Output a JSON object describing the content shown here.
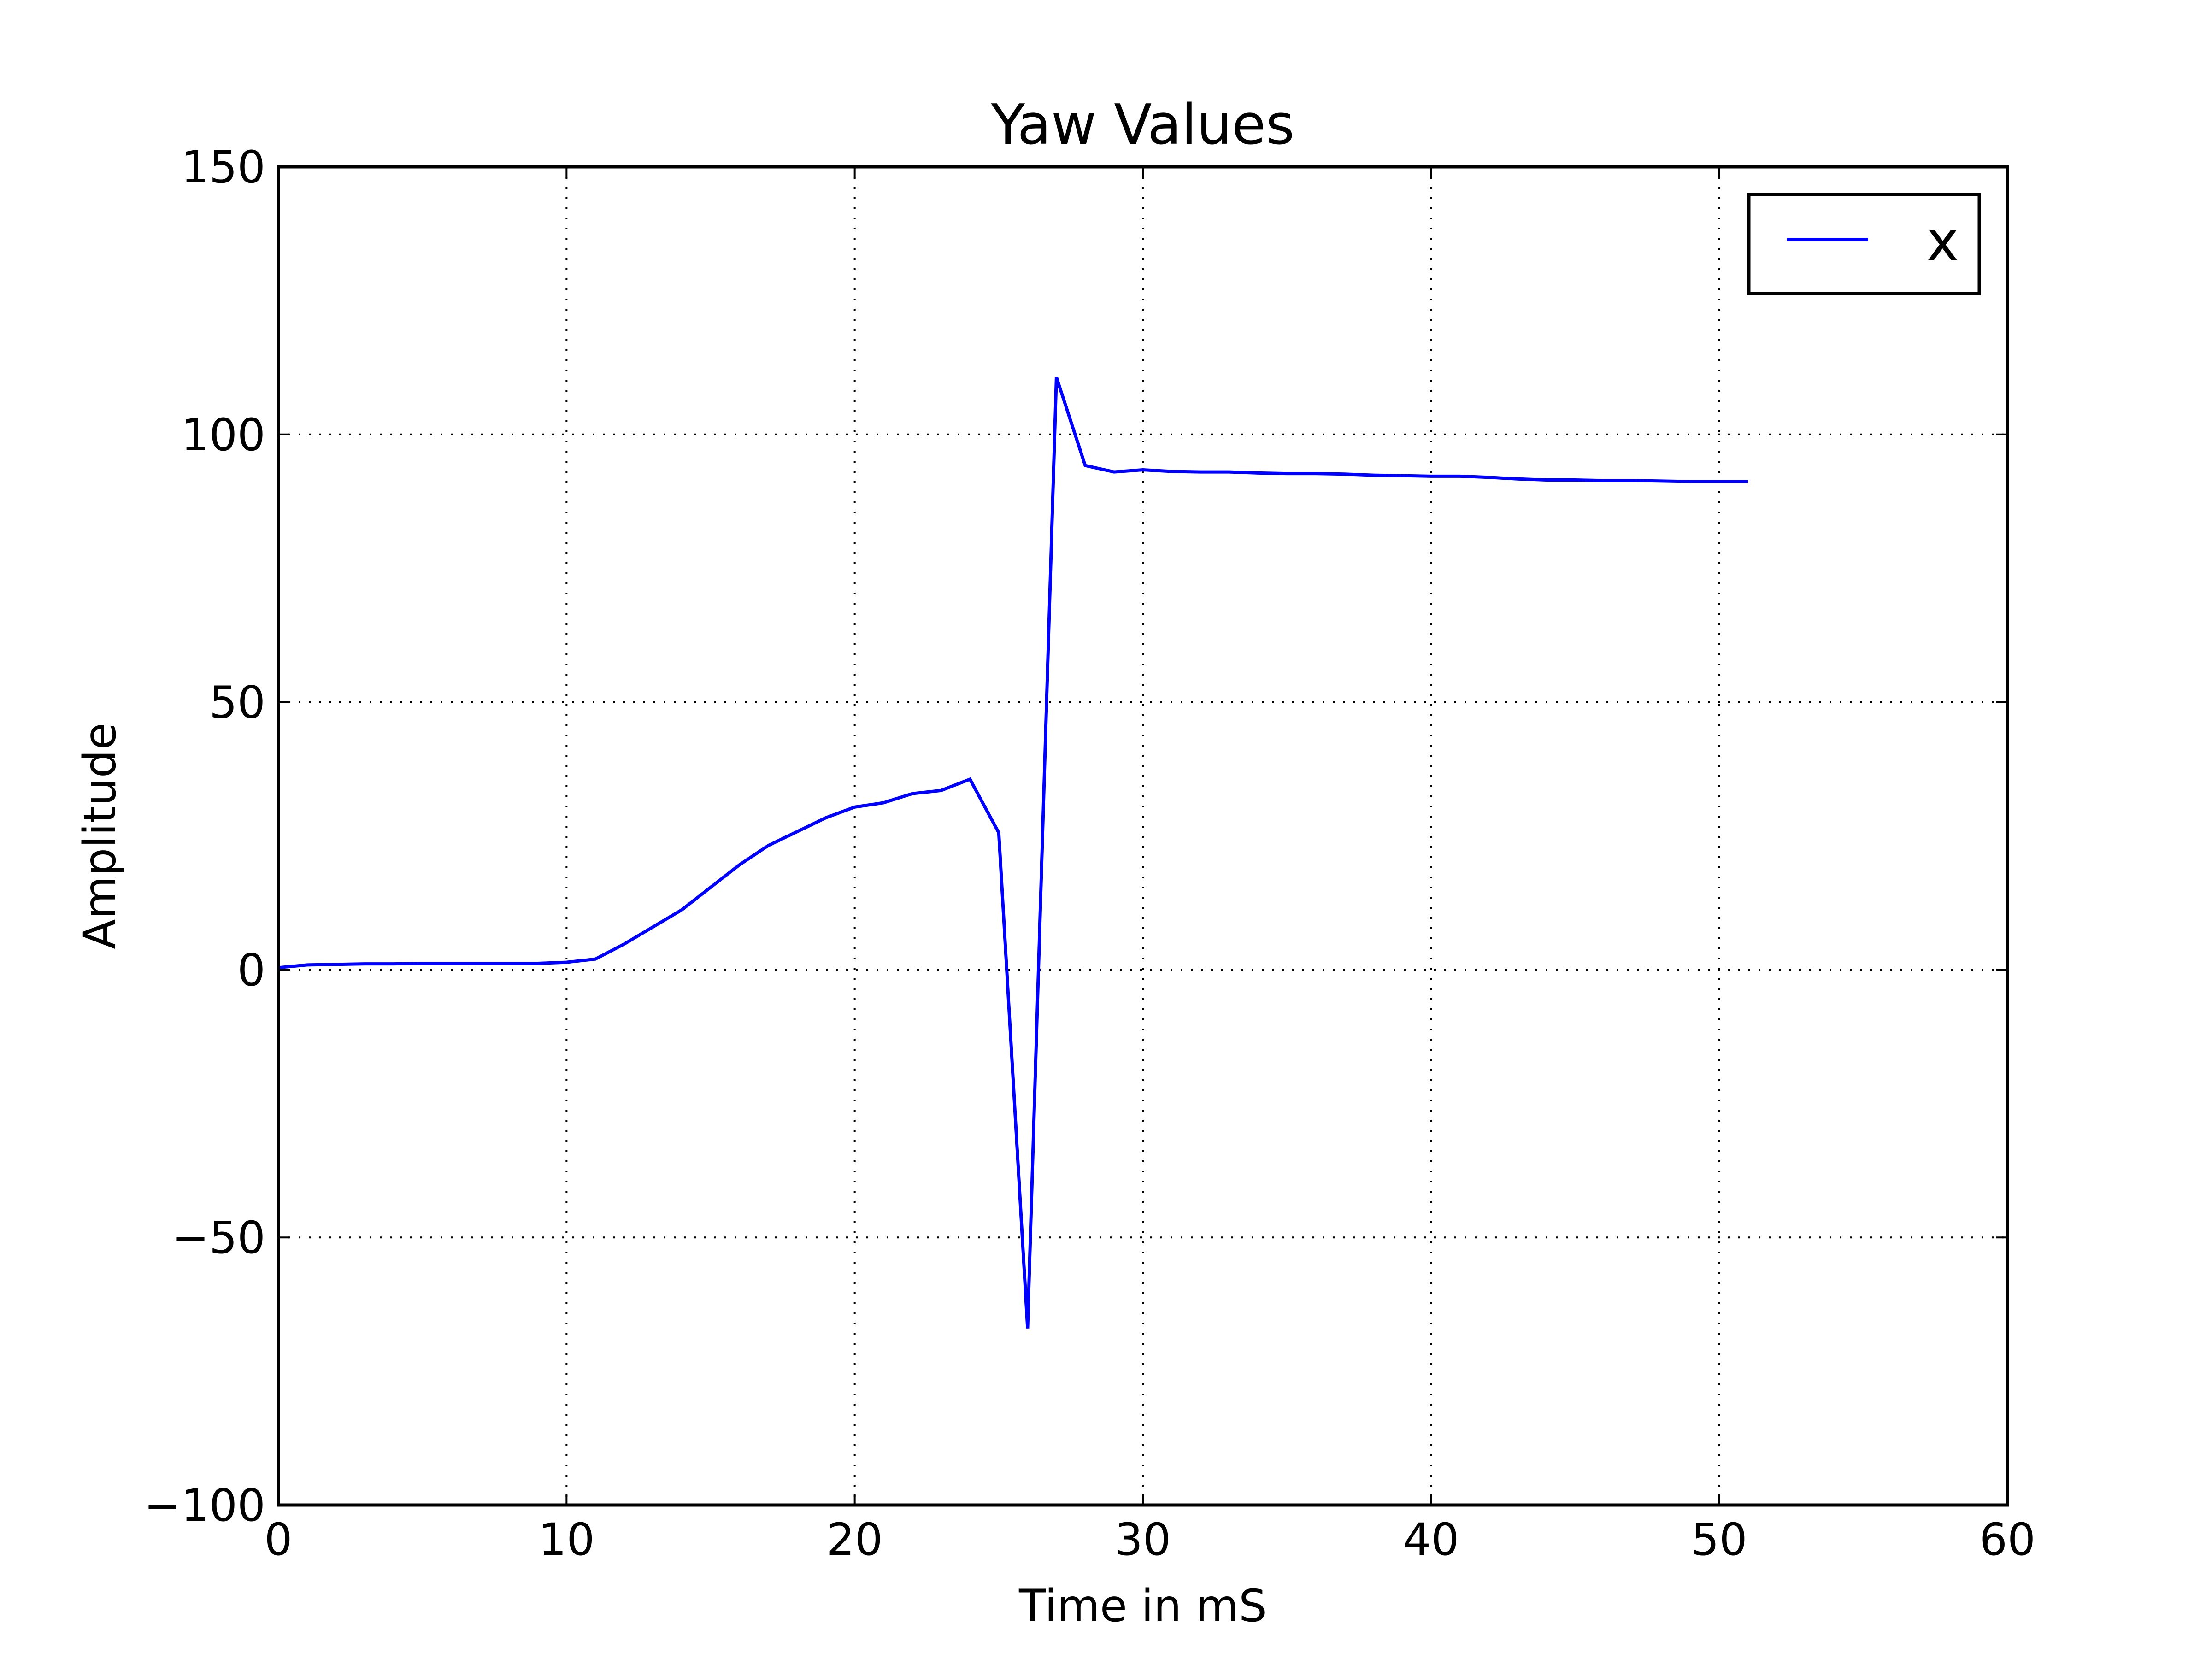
{
  "chart_data": {
    "type": "line",
    "title": "Yaw Values",
    "xlabel": "Time in mS",
    "ylabel": "Amplitude",
    "xlim": [
      0,
      60
    ],
    "ylim": [
      -100,
      150
    ],
    "xticks": [
      0,
      10,
      20,
      30,
      40,
      50,
      60
    ],
    "yticks": [
      -100,
      -50,
      0,
      50,
      100,
      150
    ],
    "xtick_labels": [
      "0",
      "10",
      "20",
      "30",
      "40",
      "50",
      "60"
    ],
    "ytick_labels": [
      "−100",
      "−50",
      "0",
      "50",
      "100",
      "150"
    ],
    "grid": true,
    "legend_position": "top-right",
    "series": [
      {
        "name": "x",
        "color": "#0000ff",
        "x": [
          0,
          1,
          2,
          3,
          4,
          5,
          6,
          7,
          8,
          9,
          10,
          11,
          12,
          13,
          14,
          15,
          16,
          17,
          18,
          19,
          20,
          21,
          22,
          23,
          24,
          25,
          26,
          27,
          28,
          29,
          30,
          31,
          32,
          33,
          34,
          35,
          36,
          37,
          38,
          39,
          40,
          41,
          42,
          43,
          44,
          45,
          46,
          47,
          48,
          49,
          50,
          51
        ],
        "y": [
          0.4,
          0.9,
          1.0,
          1.1,
          1.1,
          1.2,
          1.2,
          1.2,
          1.2,
          1.2,
          1.4,
          2.0,
          4.8,
          8.0,
          11.2,
          15.4,
          19.6,
          23.2,
          25.8,
          28.4,
          30.4,
          31.2,
          32.9,
          33.5,
          35.6,
          25.6,
          -67.0,
          110.7,
          94.2,
          93.0,
          93.4,
          93.1,
          93.0,
          93.0,
          92.8,
          92.7,
          92.7,
          92.6,
          92.4,
          92.3,
          92.2,
          92.2,
          92.0,
          91.7,
          91.5,
          91.5,
          91.4,
          91.4,
          91.3,
          91.2,
          91.2,
          91.2
        ]
      }
    ]
  }
}
